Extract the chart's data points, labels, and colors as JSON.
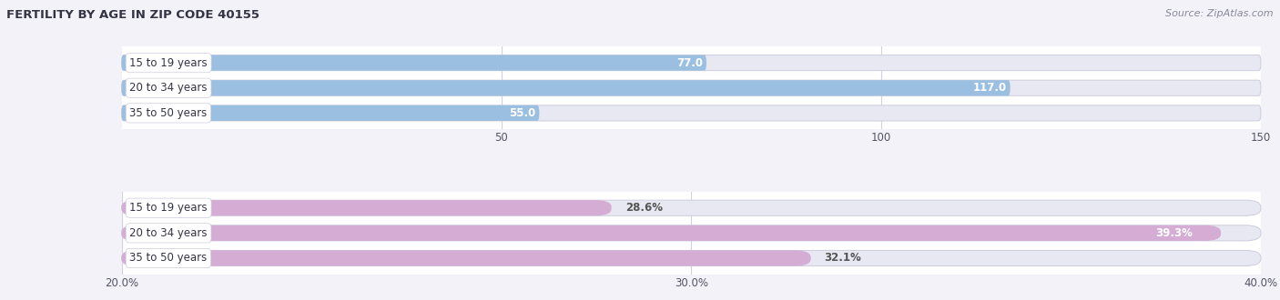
{
  "title": "FERTILITY BY AGE IN ZIP CODE 40155",
  "source": "Source: ZipAtlas.com",
  "top_bars": {
    "categories": [
      "15 to 19 years",
      "20 to 34 years",
      "35 to 50 years"
    ],
    "values": [
      77.0,
      117.0,
      55.0
    ],
    "xlim": [
      0,
      150
    ],
    "xticks": [
      50.0,
      100.0,
      150.0
    ],
    "bar_color_light": "#9bbfe0",
    "bar_color_dark": "#5b9bd5",
    "label_inside_color": "#ffffff",
    "label_outside_color": "#555555",
    "value_threshold_pct": 0.35
  },
  "bottom_bars": {
    "categories": [
      "15 to 19 years",
      "20 to 34 years",
      "35 to 50 years"
    ],
    "values": [
      28.6,
      39.3,
      32.1
    ],
    "xlim": [
      20.0,
      40.0
    ],
    "xticks": [
      20.0,
      30.0,
      40.0
    ],
    "xticklabels": [
      "20.0%",
      "30.0%",
      "40.0%"
    ],
    "bar_color_light": "#d4acd4",
    "bar_color_dark": "#ab7fb4",
    "label_inside_color": "#ffffff",
    "label_outside_color": "#555555",
    "value_threshold_pct": 0.65
  },
  "bg_color": "#f2f2f8",
  "bar_bg_color": "#e8e8f2",
  "plot_bg_color": "#ffffff",
  "grid_color": "#d0d0e0",
  "label_fontsize": 8.5,
  "tick_fontsize": 8.5,
  "title_fontsize": 9.5,
  "bar_height": 0.62,
  "cat_label_bg": "#ffffff"
}
